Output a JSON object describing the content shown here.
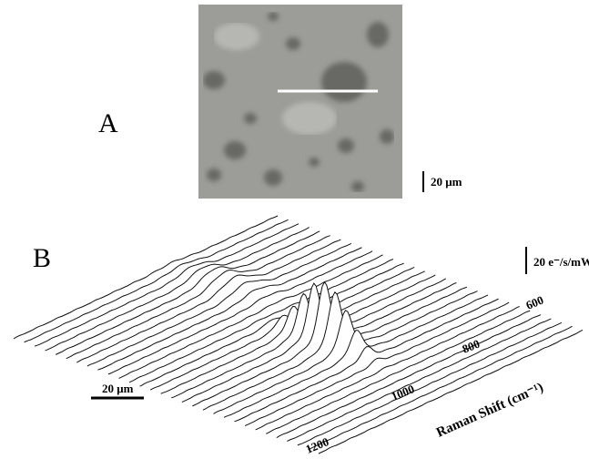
{
  "panel_a": {
    "label": "A",
    "scale_bar": "20 μm"
  },
  "panel_b": {
    "label": "B",
    "intensity_scale": "20 e⁻/s/mW",
    "length_scale": "20 μm",
    "axis_title": "Raman Shift (cm⁻¹)",
    "axis_ticks": [
      "600",
      "800",
      "1000",
      "1200"
    ]
  }
}
